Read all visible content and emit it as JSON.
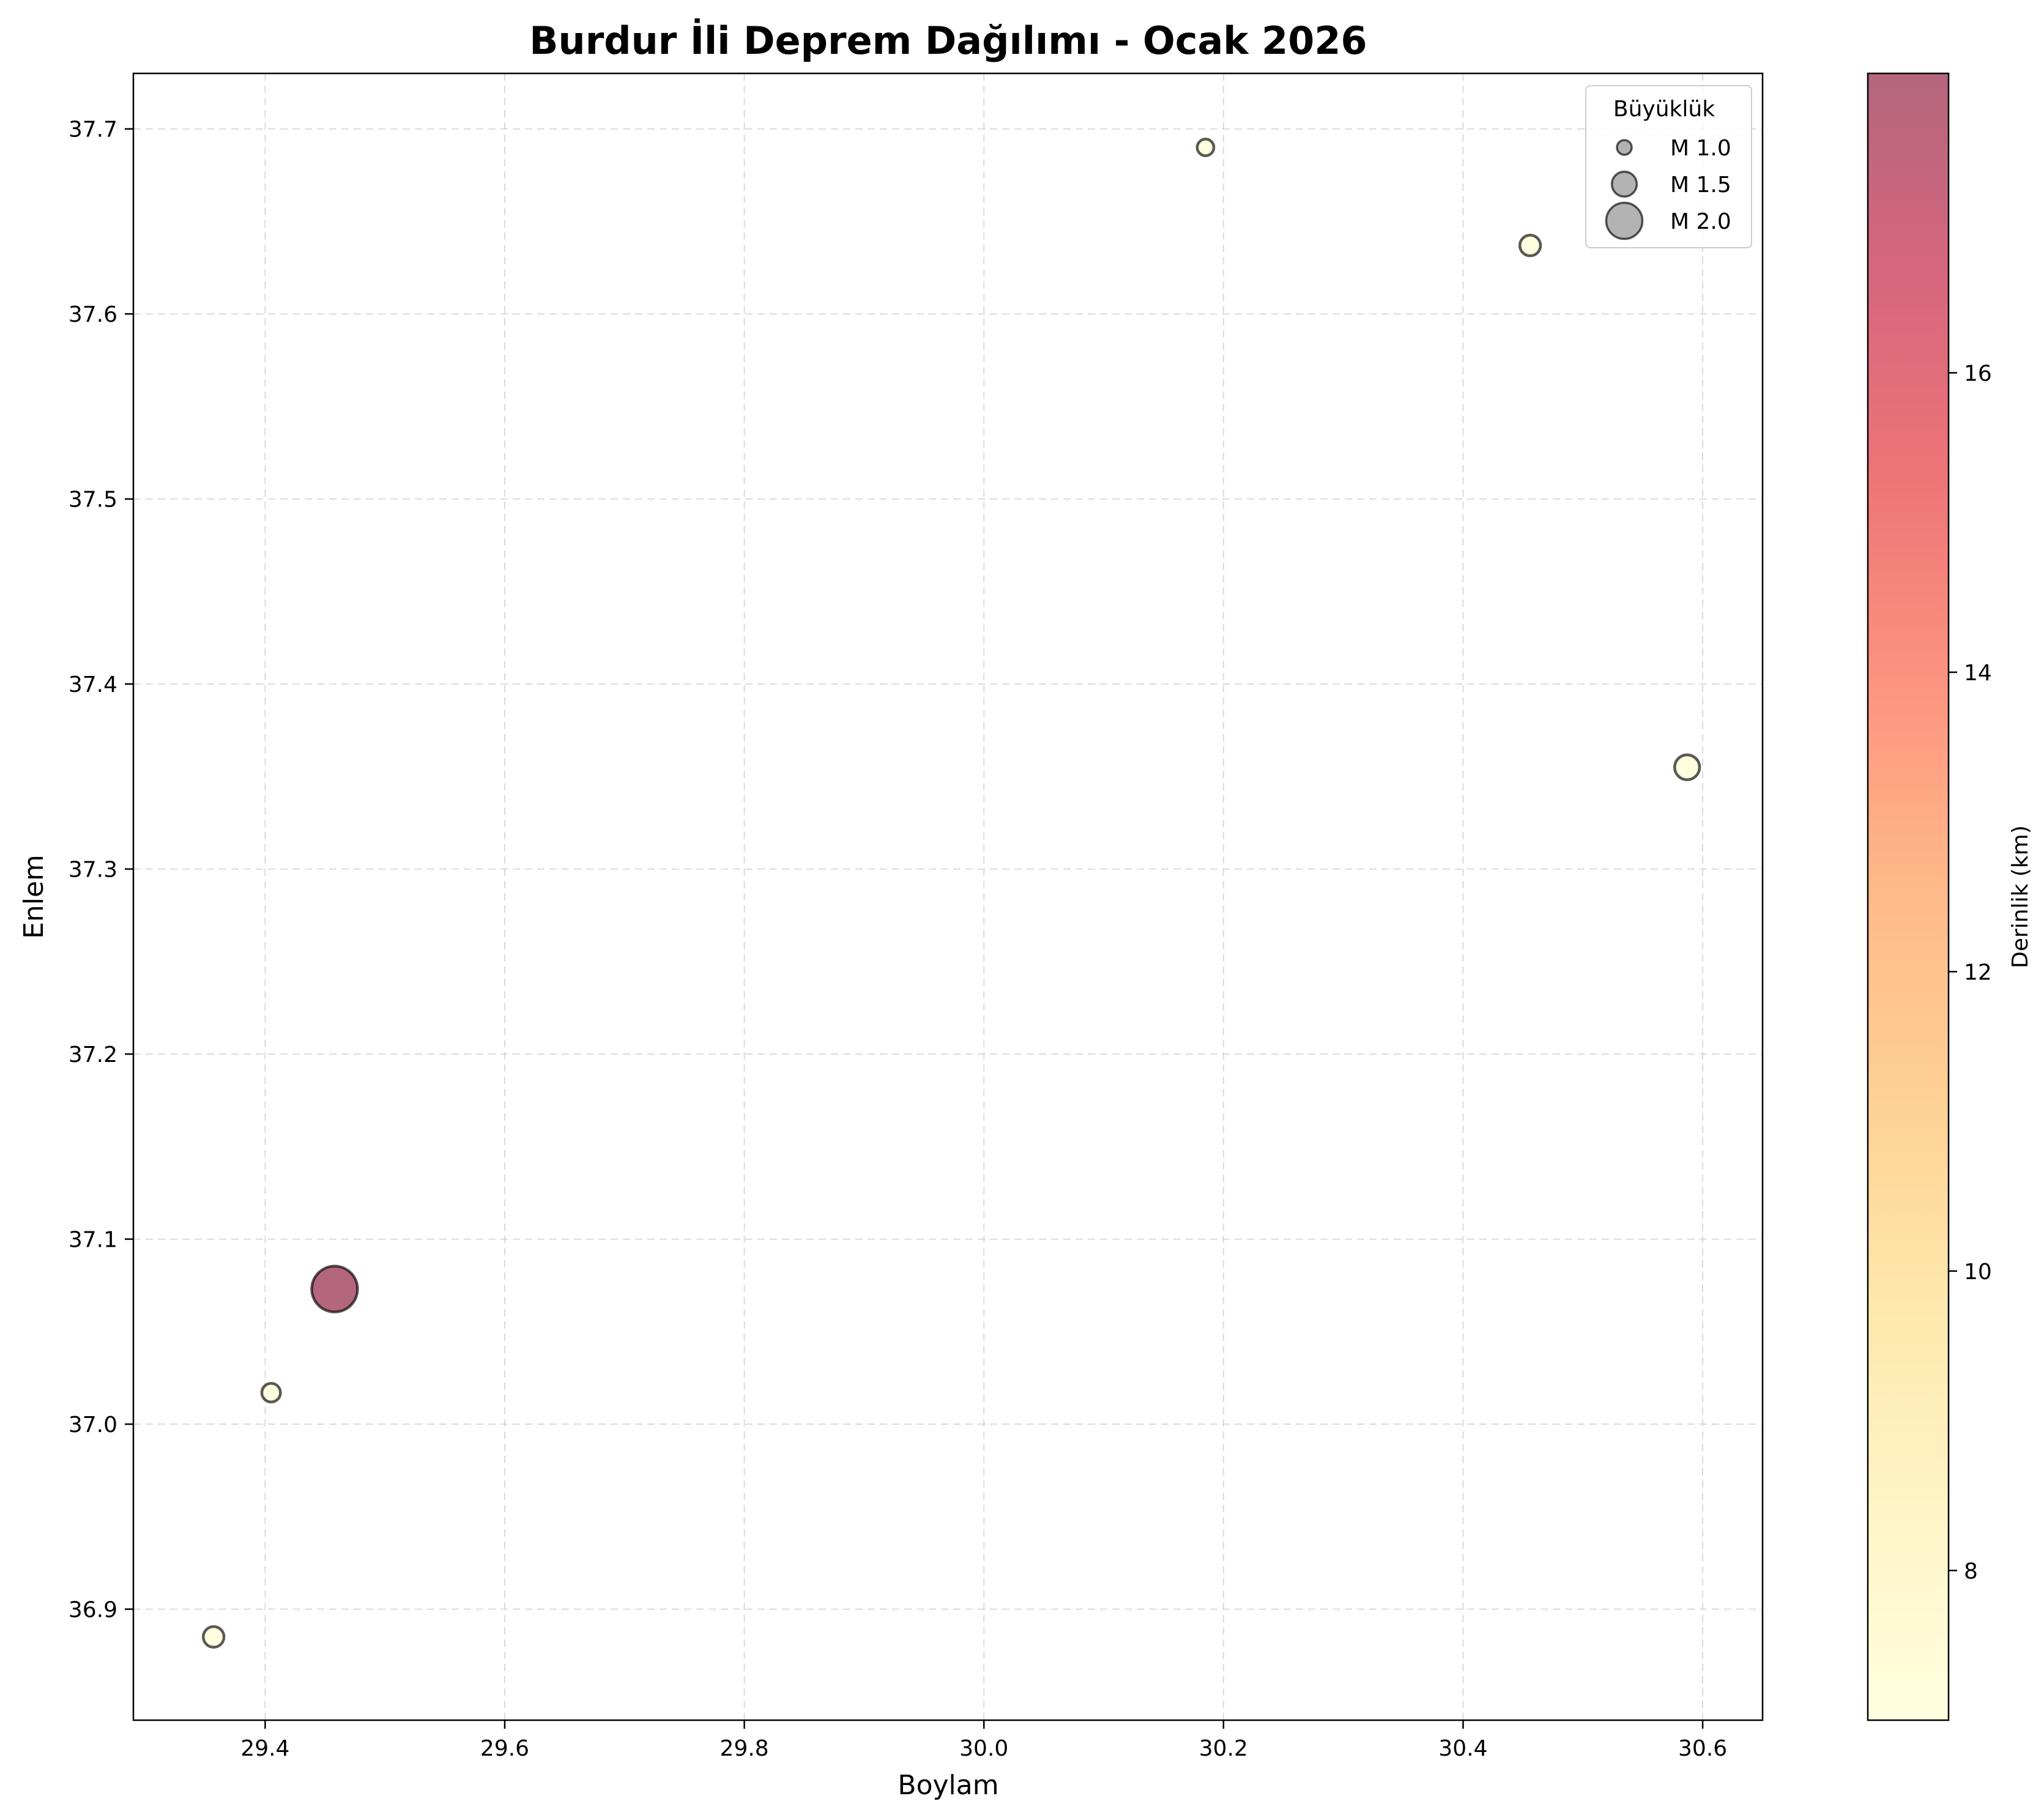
{
  "chart_data": {
    "type": "scatter",
    "title": "Burdur İli Deprem Dağılımı - Ocak 2026",
    "xlabel": "Boylam",
    "ylabel": "Enlem",
    "xlim": [
      29.29,
      30.65
    ],
    "ylim": [
      36.84,
      37.73
    ],
    "xticks": [
      29.4,
      29.6,
      29.8,
      30.0,
      30.2,
      30.4,
      30.6
    ],
    "xtick_labels": [
      "29.4",
      "29.6",
      "29.8",
      "30.0",
      "30.2",
      "30.4",
      "30.6"
    ],
    "yticks": [
      36.9,
      37.0,
      37.1,
      37.2,
      37.3,
      37.4,
      37.5,
      37.6,
      37.7
    ],
    "ytick_labels": [
      "36.9",
      "37.0",
      "37.1",
      "37.2",
      "37.3",
      "37.4",
      "37.5",
      "37.6",
      "37.7"
    ],
    "grid": true,
    "points": [
      {
        "x": 29.357,
        "y": 36.885,
        "magnitude": 1.3,
        "depth": 7.0
      },
      {
        "x": 29.405,
        "y": 37.017,
        "magnitude": 1.2,
        "depth": 7.0
      },
      {
        "x": 29.458,
        "y": 37.073,
        "magnitude": 2.4,
        "depth": 18.0
      },
      {
        "x": 30.185,
        "y": 37.69,
        "magnitude": 1.1,
        "depth": 7.0
      },
      {
        "x": 30.456,
        "y": 37.637,
        "magnitude": 1.3,
        "depth": 7.0
      },
      {
        "x": 30.587,
        "y": 37.355,
        "magnitude": 1.5,
        "depth": 7.0
      }
    ],
    "legend": {
      "title": "Büyüklük",
      "position": "top-right",
      "entries": [
        {
          "label": "M 1.0",
          "magnitude": 1.0
        },
        {
          "label": "M 1.5",
          "magnitude": 1.5
        },
        {
          "label": "M 2.0",
          "magnitude": 2.0
        }
      ]
    },
    "colorbar": {
      "label": "Derinlik (km)",
      "range": [
        7.0,
        18.0
      ],
      "ticks": [
        8,
        10,
        12,
        14,
        16
      ],
      "tick_labels": [
        "8",
        "10",
        "12",
        "14",
        "16"
      ],
      "colormap": [
        "#ffffcc",
        "#ffeda0",
        "#fed976",
        "#feb24c",
        "#fd8d3c",
        "#fc4e2a",
        "#e31a1c",
        "#bd0026",
        "#800026"
      ]
    },
    "point_alpha": 0.6,
    "edge_color": "#000000",
    "legend_fill_color": "#808080"
  }
}
